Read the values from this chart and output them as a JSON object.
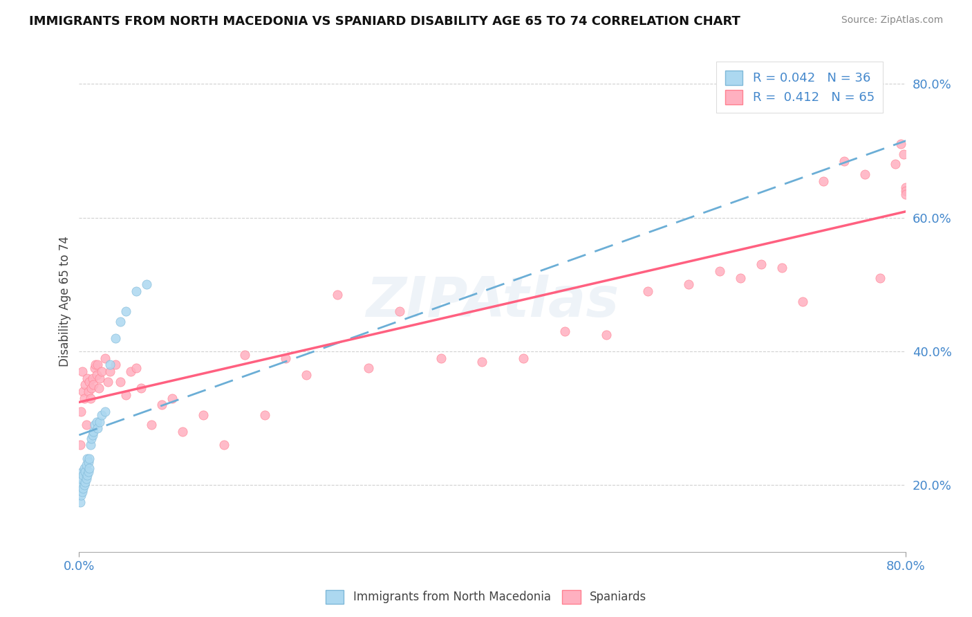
{
  "title": "IMMIGRANTS FROM NORTH MACEDONIA VS SPANIARD DISABILITY AGE 65 TO 74 CORRELATION CHART",
  "source": "Source: ZipAtlas.com",
  "ylabel": "Disability Age 65 to 74",
  "xlim": [
    0.0,
    0.8
  ],
  "ylim": [
    0.1,
    0.85
  ],
  "color_blue_fill": "#ACD8F0",
  "color_blue_edge": "#7EB8D8",
  "color_blue_line": "#6BAED6",
  "color_pink_fill": "#FFB0C0",
  "color_pink_edge": "#FF8090",
  "color_pink_line": "#FF6080",
  "tick_color": "#4488CC",
  "watermark": "ZIPAtlas",
  "legend_label1": "R = 0.042   N = 36",
  "legend_label2": "R =  0.412   N = 65",
  "bottom_label1": "Immigrants from North Macedonia",
  "bottom_label2": "Spaniards",
  "blue_scatter_x": [
    0.001,
    0.001,
    0.002,
    0.002,
    0.003,
    0.003,
    0.004,
    0.004,
    0.005,
    0.005,
    0.006,
    0.006,
    0.007,
    0.007,
    0.008,
    0.008,
    0.009,
    0.009,
    0.01,
    0.01,
    0.011,
    0.012,
    0.013,
    0.014,
    0.015,
    0.017,
    0.018,
    0.02,
    0.022,
    0.025,
    0.03,
    0.035,
    0.04,
    0.045,
    0.055,
    0.065
  ],
  "blue_scatter_y": [
    0.175,
    0.2,
    0.185,
    0.21,
    0.19,
    0.22,
    0.195,
    0.215,
    0.2,
    0.225,
    0.205,
    0.22,
    0.21,
    0.23,
    0.215,
    0.24,
    0.22,
    0.235,
    0.225,
    0.24,
    0.26,
    0.27,
    0.275,
    0.28,
    0.29,
    0.295,
    0.285,
    0.295,
    0.305,
    0.31,
    0.38,
    0.42,
    0.445,
    0.46,
    0.49,
    0.5
  ],
  "pink_scatter_x": [
    0.001,
    0.002,
    0.003,
    0.004,
    0.005,
    0.006,
    0.007,
    0.008,
    0.009,
    0.01,
    0.011,
    0.012,
    0.013,
    0.014,
    0.015,
    0.016,
    0.017,
    0.018,
    0.019,
    0.02,
    0.022,
    0.025,
    0.028,
    0.03,
    0.035,
    0.04,
    0.045,
    0.05,
    0.055,
    0.06,
    0.07,
    0.08,
    0.09,
    0.1,
    0.12,
    0.14,
    0.16,
    0.18,
    0.2,
    0.22,
    0.25,
    0.28,
    0.31,
    0.35,
    0.39,
    0.43,
    0.47,
    0.51,
    0.55,
    0.59,
    0.62,
    0.64,
    0.66,
    0.68,
    0.7,
    0.72,
    0.74,
    0.76,
    0.775,
    0.79,
    0.795,
    0.798,
    0.8,
    0.8,
    0.8
  ],
  "pink_scatter_y": [
    0.26,
    0.31,
    0.37,
    0.34,
    0.33,
    0.35,
    0.29,
    0.36,
    0.34,
    0.355,
    0.33,
    0.345,
    0.36,
    0.35,
    0.375,
    0.38,
    0.365,
    0.38,
    0.345,
    0.36,
    0.37,
    0.39,
    0.355,
    0.37,
    0.38,
    0.355,
    0.335,
    0.37,
    0.375,
    0.345,
    0.29,
    0.32,
    0.33,
    0.28,
    0.305,
    0.26,
    0.395,
    0.305,
    0.39,
    0.365,
    0.485,
    0.375,
    0.46,
    0.39,
    0.385,
    0.39,
    0.43,
    0.425,
    0.49,
    0.5,
    0.52,
    0.51,
    0.53,
    0.525,
    0.475,
    0.655,
    0.685,
    0.665,
    0.51,
    0.68,
    0.71,
    0.695,
    0.645,
    0.64,
    0.635
  ]
}
